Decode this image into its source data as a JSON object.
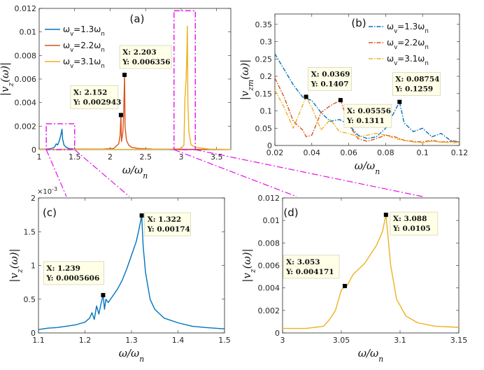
{
  "colors": {
    "s1": "#0072BD",
    "s2": "#D95319",
    "s3": "#EDB120",
    "zoom": "#E60FE6"
  },
  "chart_data": [
    {
      "id": "a",
      "type": "line",
      "panel_label": "(a)",
      "xlabel": "ω/ω_n",
      "ylabel": "|v_z(ω)|",
      "xlim": [
        1,
        3.7
      ],
      "ylim": [
        0,
        0.012
      ],
      "xticks": [
        1,
        1.5,
        2,
        2.5,
        3,
        3.5
      ],
      "xtick_labels": [
        "1",
        "1.5",
        "2",
        "2.5",
        "3",
        "3.5"
      ],
      "yticks": [
        0,
        0.002,
        0.004,
        0.006,
        0.008,
        0.01,
        0.012
      ],
      "ytick_labels": [
        "0",
        "0.002",
        "0.004",
        "0.006",
        "0.008",
        "0.01",
        "0.012"
      ],
      "legend": [
        "ω_v=1.3ω_n",
        "ω_v=2.2ω_n",
        "ω_v=3.1ω_n"
      ],
      "legend_position": "top-left",
      "series": [
        {
          "name": "ω_v=1.3ω_n",
          "color_key": "s1",
          "x": [
            1.0,
            1.1,
            1.15,
            1.2,
            1.22,
            1.24,
            1.26,
            1.28,
            1.3,
            1.31,
            1.322,
            1.33,
            1.35,
            1.38,
            1.42,
            1.5,
            1.7,
            2.0,
            2.5,
            3.0,
            3.7
          ],
          "y": [
            3e-05,
            5e-05,
            8e-05,
            0.00015,
            0.00025,
            0.0005,
            0.0004,
            0.0007,
            0.0011,
            0.0014,
            0.00174,
            0.0009,
            0.0004,
            0.0002,
            0.0001,
            5e-05,
            3e-05,
            2e-05,
            2e-05,
            2e-05,
            1e-05
          ]
        },
        {
          "name": "ω_v=2.2ω_n",
          "color_key": "s2",
          "x": [
            1.0,
            1.5,
            1.9,
            2.05,
            2.12,
            2.14,
            2.152,
            2.16,
            2.18,
            2.19,
            2.203,
            2.21,
            2.23,
            2.26,
            2.3,
            2.4,
            2.6,
            3.0,
            3.7
          ],
          "y": [
            2e-05,
            3e-05,
            5e-05,
            0.0001,
            0.0005,
            0.0012,
            0.002943,
            0.0007,
            0.0015,
            0.003,
            0.006356,
            0.002,
            0.0008,
            0.0004,
            0.0002,
            0.0001,
            5e-05,
            3e-05,
            2e-05
          ]
        },
        {
          "name": "ω_v=3.1ω_n",
          "color_key": "s3",
          "x": [
            1.0,
            2.0,
            2.8,
            3.0,
            3.04,
            3.053,
            3.07,
            3.08,
            3.088,
            3.095,
            3.11,
            3.14,
            3.2,
            3.4,
            3.7
          ],
          "y": [
            2e-05,
            2e-05,
            3e-05,
            0.0001,
            0.0004,
            0.0042,
            0.006,
            0.008,
            0.0105,
            0.004,
            0.0015,
            0.0004,
            0.0002,
            5e-05,
            2e-05
          ]
        }
      ],
      "annotations": [
        {
          "x": 2.152,
          "y": 0.002943,
          "lines": [
            "X: 2.152",
            "Y: 0.002943"
          ]
        },
        {
          "x": 2.203,
          "y": 0.006356,
          "lines": [
            "X: 2.203",
            "Y: 0.006356"
          ]
        }
      ],
      "zoom_boxes": [
        {
          "x": [
            1.1,
            1.5
          ],
          "y": [
            0,
            0.0022
          ]
        },
        {
          "x": [
            2.9,
            3.2
          ],
          "y": [
            0,
            0.0118
          ]
        }
      ]
    },
    {
      "id": "b",
      "type": "line",
      "panel_label": "(b)",
      "xlabel": "ω/ω_n",
      "ylabel": "|v_zm(ω)|",
      "xlim": [
        0.02,
        0.12
      ],
      "ylim": [
        0,
        0.38
      ],
      "xticks": [
        0.02,
        0.04,
        0.06,
        0.08,
        0.1,
        0.12
      ],
      "xtick_labels": [
        "0.02",
        "0.04",
        "0.06",
        "0.08",
        "0.1",
        "0.12"
      ],
      "yticks": [
        0,
        0.05,
        0.1,
        0.15,
        0.2,
        0.25,
        0.3,
        0.35
      ],
      "ytick_labels": [
        "0",
        "0.05",
        "0.1",
        "0.15",
        "0.2",
        "0.25",
        "0.3",
        "0.35"
      ],
      "legend": [
        "ω_v=1.3ω_n",
        "ω_v=2.2ω_n",
        "ω_v=3.1ω_n"
      ],
      "legend_position": "top-right",
      "line_style": "dash-dot",
      "series": [
        {
          "name": "ω_v=1.3ω_n",
          "color_key": "s1",
          "x": [
            0.02,
            0.025,
            0.03,
            0.035,
            0.04,
            0.045,
            0.05,
            0.055,
            0.06,
            0.065,
            0.07,
            0.075,
            0.08,
            0.085,
            0.0875,
            0.09,
            0.095,
            0.1,
            0.105,
            0.11,
            0.115,
            0.12
          ],
          "y": [
            0.265,
            0.22,
            0.175,
            0.14,
            0.13,
            0.095,
            0.07,
            0.075,
            0.06,
            0.03,
            0.02,
            0.025,
            0.05,
            0.1,
            0.1259,
            0.065,
            0.04,
            0.05,
            0.025,
            0.035,
            0.015,
            0.01
          ]
        },
        {
          "name": "ω_v=2.2ω_n",
          "color_key": "s2",
          "x": [
            0.02,
            0.025,
            0.03,
            0.035,
            0.037,
            0.04,
            0.045,
            0.05,
            0.0556,
            0.06,
            0.065,
            0.07,
            0.075,
            0.08,
            0.085,
            0.09,
            0.095,
            0.1,
            0.105,
            0.11,
            0.115,
            0.12
          ],
          "y": [
            0.195,
            0.14,
            0.07,
            0.045,
            0.025,
            0.03,
            0.095,
            0.115,
            0.1311,
            0.06,
            0.02,
            0.012,
            0.02,
            0.03,
            0.025,
            0.015,
            0.012,
            0.01,
            0.015,
            0.01,
            0.012,
            0.01
          ]
        },
        {
          "name": "ω_v=3.1ω_n",
          "color_key": "s3",
          "x": [
            0.02,
            0.025,
            0.03,
            0.0369,
            0.04,
            0.045,
            0.05,
            0.055,
            0.06,
            0.065,
            0.07,
            0.075,
            0.08,
            0.085,
            0.09,
            0.095,
            0.1,
            0.105,
            0.11,
            0.115,
            0.12
          ],
          "y": [
            0.16,
            0.11,
            0.05,
            0.1407,
            0.11,
            0.045,
            0.075,
            0.04,
            0.035,
            0.025,
            0.03,
            0.035,
            0.03,
            0.02,
            0.015,
            0.01,
            0.008,
            0.012,
            0.01,
            0.008,
            0.008
          ]
        }
      ],
      "annotations": [
        {
          "x": 0.0369,
          "y": 0.1407,
          "lines": [
            "X: 0.0369",
            "Y: 0.1407"
          ]
        },
        {
          "x": 0.05556,
          "y": 0.1311,
          "lines": [
            "X: 0.05556",
            "Y: 0.1311"
          ]
        },
        {
          "x": 0.08754,
          "y": 0.1259,
          "lines": [
            "X: 0.08754",
            "Y: 0.1259"
          ]
        }
      ]
    },
    {
      "id": "c",
      "type": "line",
      "panel_label": "(c)",
      "xlabel": "ω/ω_n",
      "ylabel": "|v_z(ω)|",
      "exponent_label": "×10",
      "exponent_power": "-3",
      "xlim": [
        1.1,
        1.5
      ],
      "ylim": [
        0,
        2
      ],
      "xticks": [
        1.1,
        1.2,
        1.3,
        1.4,
        1.5
      ],
      "xtick_labels": [
        "1.1",
        "1.2",
        "1.3",
        "1.4",
        "1.5"
      ],
      "yticks": [
        0,
        0.5,
        1,
        1.5,
        2
      ],
      "ytick_labels": [
        "0",
        "0.5",
        "1",
        "1.5",
        "2"
      ],
      "series": [
        {
          "name": "ω_v=1.3ω_n",
          "color_key": "s1",
          "x": [
            1.1,
            1.12,
            1.14,
            1.16,
            1.18,
            1.19,
            1.2,
            1.21,
            1.215,
            1.22,
            1.225,
            1.23,
            1.235,
            1.239,
            1.242,
            1.245,
            1.25,
            1.26,
            1.27,
            1.28,
            1.29,
            1.3,
            1.31,
            1.315,
            1.322,
            1.325,
            1.33,
            1.34,
            1.35,
            1.37,
            1.4,
            1.43,
            1.46,
            1.5
          ],
          "y": [
            0.05,
            0.07,
            0.08,
            0.1,
            0.12,
            0.14,
            0.16,
            0.22,
            0.3,
            0.2,
            0.4,
            0.28,
            0.45,
            0.5606,
            0.35,
            0.5,
            0.45,
            0.55,
            0.65,
            0.78,
            0.95,
            1.15,
            1.35,
            1.5,
            1.74,
            1.3,
            0.9,
            0.5,
            0.35,
            0.22,
            0.15,
            0.1,
            0.08,
            0.06
          ]
        }
      ],
      "annotations": [
        {
          "x": 1.239,
          "y": 0.5606,
          "lines": [
            "X: 1.239",
            "Y: 0.0005606"
          ]
        },
        {
          "x": 1.322,
          "y": 1.74,
          "lines": [
            "X: 1.322",
            "Y: 0.00174"
          ]
        }
      ]
    },
    {
      "id": "d",
      "type": "line",
      "panel_label": "(d)",
      "xlabel": "ω/ω_n",
      "ylabel": "|v_z(ω)|",
      "xlim": [
        3,
        3.15
      ],
      "ylim": [
        0,
        0.012
      ],
      "xticks": [
        3,
        3.05,
        3.1,
        3.15
      ],
      "xtick_labels": [
        "3",
        "3.05",
        "3.1",
        "3.15"
      ],
      "yticks": [
        0,
        0.002,
        0.004,
        0.006,
        0.008,
        0.01,
        0.012
      ],
      "ytick_labels": [
        "0",
        "0.002",
        "0.004",
        "0.006",
        "0.008",
        "0.01",
        "0.012"
      ],
      "series": [
        {
          "name": "ω_v=3.1ω_n",
          "color_key": "s3",
          "x": [
            3.0,
            3.02,
            3.035,
            3.04,
            3.045,
            3.05,
            3.053,
            3.055,
            3.06,
            3.07,
            3.08,
            3.085,
            3.088,
            3.092,
            3.097,
            3.105,
            3.115,
            3.13,
            3.15
          ],
          "y": [
            0.0004,
            0.0004,
            0.0006,
            0.0012,
            0.002,
            0.0038,
            0.004171,
            0.0042,
            0.0052,
            0.0062,
            0.0078,
            0.009,
            0.0105,
            0.006,
            0.003,
            0.0015,
            0.0009,
            0.0006,
            0.0005
          ]
        }
      ],
      "annotations": [
        {
          "x": 3.053,
          "y": 0.004171,
          "lines": [
            "X: 3.053",
            "Y: 0.004171"
          ]
        },
        {
          "x": 3.088,
          "y": 0.0105,
          "lines": [
            "X: 3.088",
            "Y: 0.0105"
          ]
        }
      ]
    }
  ]
}
